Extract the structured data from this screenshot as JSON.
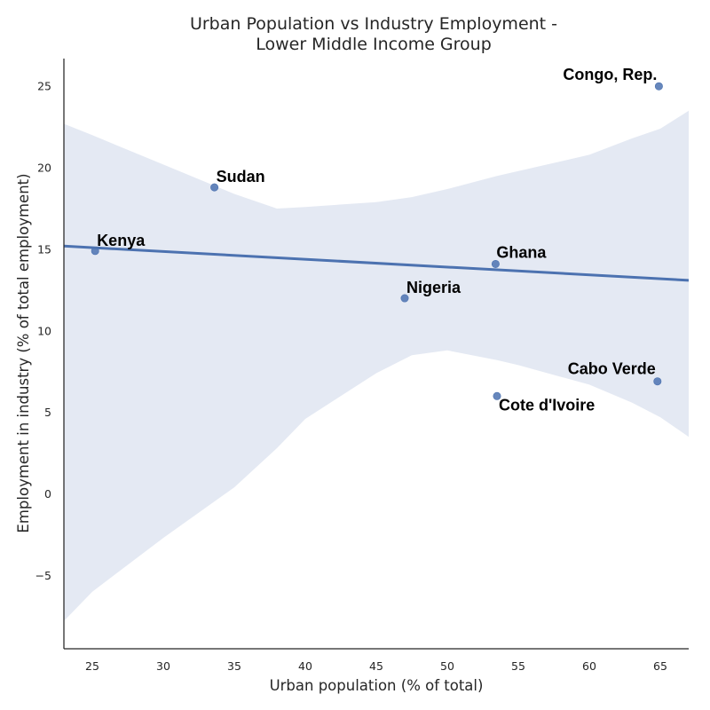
{
  "chart_data": {
    "type": "scatter",
    "title_lines": [
      "Urban Population vs Industry Employment -",
      "Lower Middle Income Group"
    ],
    "xlabel": "Urban population (% of total)",
    "ylabel": "Employment in industry (% of total employment)",
    "xlim": [
      23.0,
      67.0
    ],
    "ylim": [
      -9.5,
      26.7
    ],
    "xticks": [
      25,
      30,
      35,
      40,
      45,
      50,
      55,
      60,
      65
    ],
    "yticks": [
      -5,
      0,
      5,
      10,
      15,
      20,
      25
    ],
    "grid": false,
    "colors": {
      "point": "#4c72b0",
      "line": "#4c72b0",
      "band": "#e4e9f3"
    },
    "points": [
      {
        "label": "Kenya",
        "x": 25.2,
        "y": 14.9
      },
      {
        "label": "Sudan",
        "x": 33.6,
        "y": 18.8
      },
      {
        "label": "Nigeria",
        "x": 47.0,
        "y": 12.0
      },
      {
        "label": "Ghana",
        "x": 53.4,
        "y": 14.1
      },
      {
        "label": "Cote d'Ivoire",
        "x": 53.5,
        "y": 6.0
      },
      {
        "label": "Cabo Verde",
        "x": 64.8,
        "y": 6.9
      },
      {
        "label": "Congo, Rep.",
        "x": 64.9,
        "y": 25.0
      }
    ],
    "regression_line": {
      "x": [
        23.0,
        67.0
      ],
      "y": [
        15.2,
        13.1
      ]
    },
    "confidence_band": {
      "x": [
        23.0,
        25.0,
        30.0,
        35.0,
        38.0,
        40.0,
        45.0,
        47.5,
        50.0,
        53.5,
        55.0,
        60.0,
        63.0,
        65.0,
        67.0
      ],
      "upper": [
        22.7,
        22.0,
        20.2,
        18.4,
        17.5,
        17.6,
        17.9,
        18.2,
        18.7,
        19.5,
        19.8,
        20.8,
        21.8,
        22.4,
        23.5
      ],
      "lower": [
        -7.8,
        -6.0,
        -2.7,
        0.4,
        2.8,
        4.6,
        7.4,
        8.5,
        8.8,
        8.2,
        7.9,
        6.7,
        5.6,
        4.7,
        3.5
      ]
    }
  }
}
